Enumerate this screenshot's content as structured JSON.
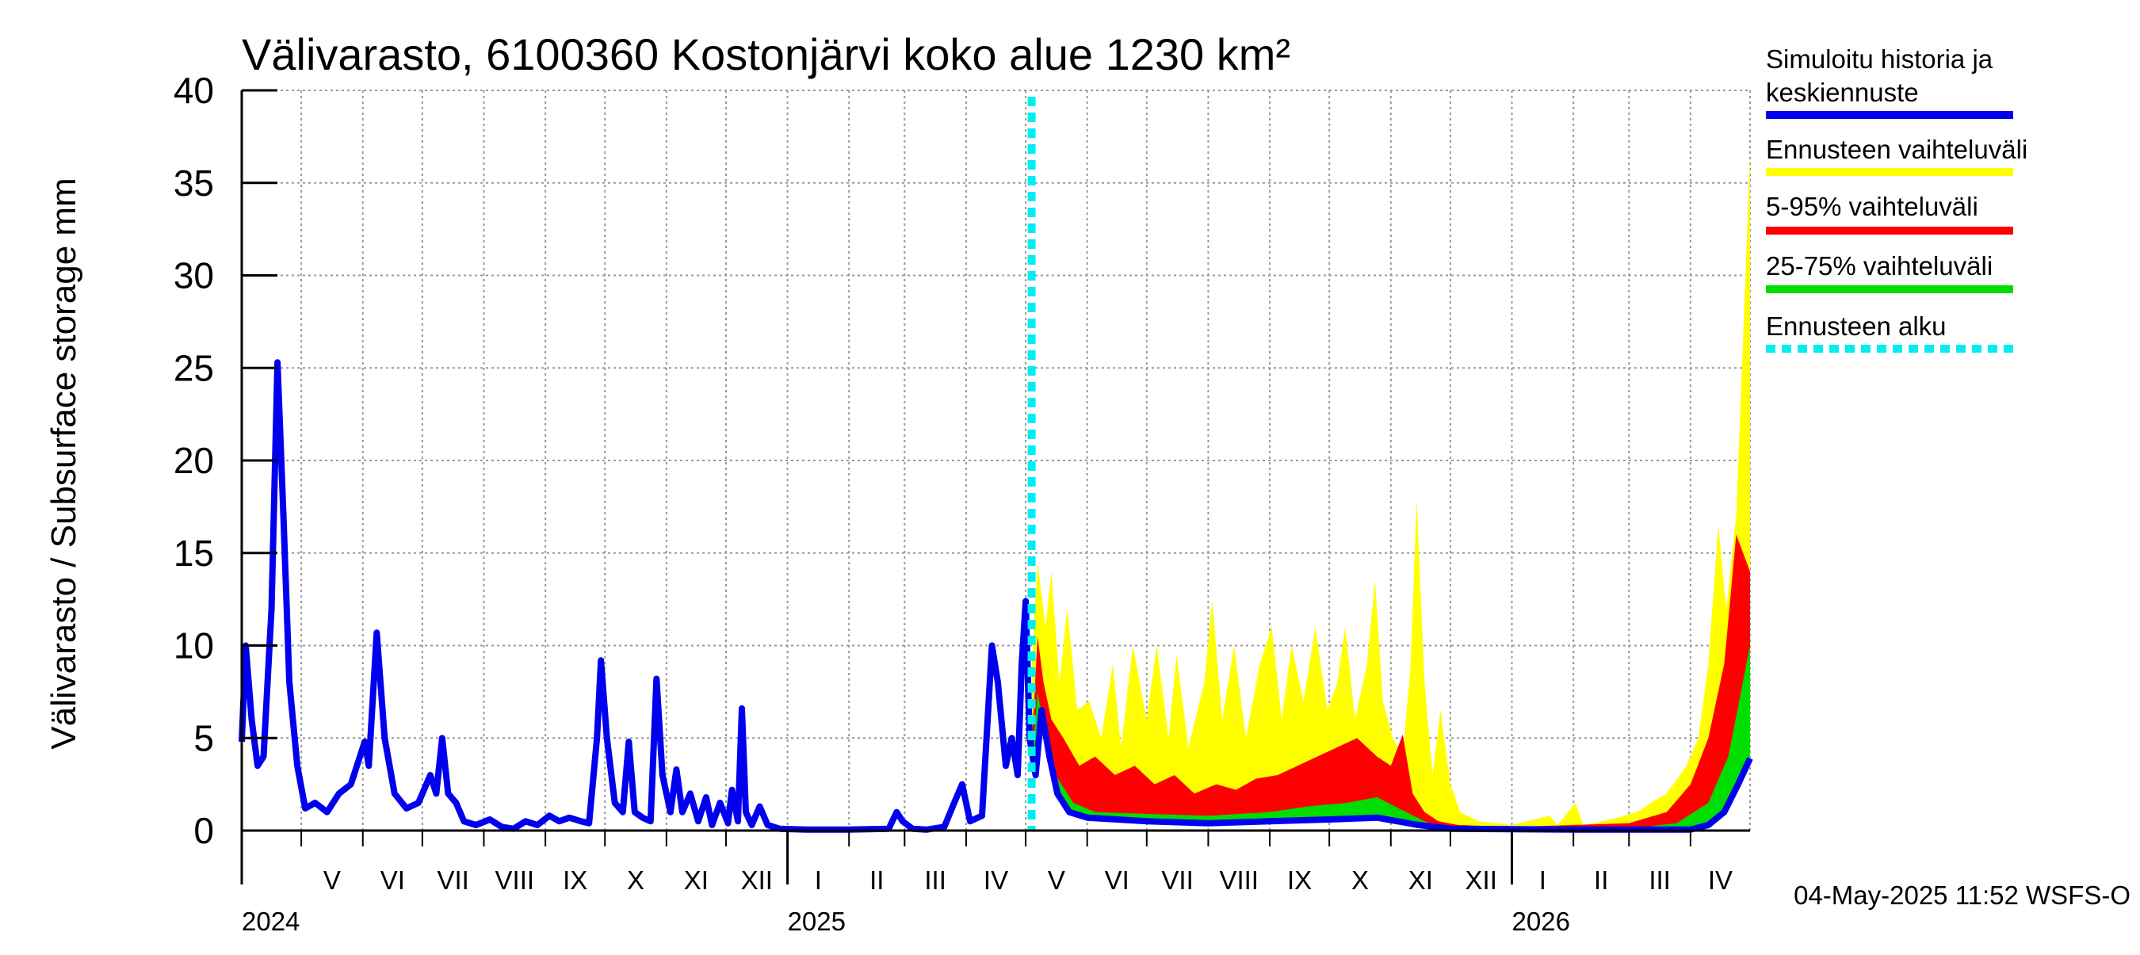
{
  "chart_data": {
    "type": "area",
    "title": "Välivarasto, 6100360 Kostonjärvi koko alue 1230 km²",
    "ylabel": "Välivarasto / Subsurface storage  mm",
    "ylim": [
      0,
      40
    ],
    "yticks": [
      0,
      5,
      10,
      15,
      20,
      25,
      30,
      35,
      40
    ],
    "xlim": [
      "2024-04-01",
      "2026-05-01"
    ],
    "grid": true,
    "legend_position": "right",
    "forecast_start": "2025-05-04",
    "months": [
      {
        "label": "V",
        "start": "2024-05-01"
      },
      {
        "label": "VI",
        "start": "2024-06-01"
      },
      {
        "label": "VII",
        "start": "2024-07-01"
      },
      {
        "label": "VIII",
        "start": "2024-08-01"
      },
      {
        "label": "IX",
        "start": "2024-09-01"
      },
      {
        "label": "X",
        "start": "2024-10-01"
      },
      {
        "label": "XI",
        "start": "2024-11-01"
      },
      {
        "label": "XII",
        "start": "2024-12-01"
      },
      {
        "label": "I",
        "start": "2025-01-01"
      },
      {
        "label": "II",
        "start": "2025-02-01"
      },
      {
        "label": "III",
        "start": "2025-03-01"
      },
      {
        "label": "IV",
        "start": "2025-04-01"
      },
      {
        "label": "V",
        "start": "2025-05-01"
      },
      {
        "label": "VI",
        "start": "2025-06-01"
      },
      {
        "label": "VII",
        "start": "2025-07-01"
      },
      {
        "label": "VIII",
        "start": "2025-08-01"
      },
      {
        "label": "IX",
        "start": "2025-09-01"
      },
      {
        "label": "X",
        "start": "2025-10-01"
      },
      {
        "label": "XI",
        "start": "2025-11-01"
      },
      {
        "label": "XII",
        "start": "2025-12-01"
      },
      {
        "label": "I",
        "start": "2026-01-01"
      },
      {
        "label": "II",
        "start": "2026-02-01"
      },
      {
        "label": "III",
        "start": "2026-03-01"
      },
      {
        "label": "IV",
        "start": "2026-04-01"
      }
    ],
    "years": [
      {
        "label": "2024",
        "date": "2024-04-01"
      },
      {
        "label": "2025",
        "date": "2025-01-01"
      },
      {
        "label": "2026",
        "date": "2026-01-01"
      }
    ],
    "series": [
      {
        "name": "Simuloitu historia ja keskiennuste",
        "color": "#0000ee",
        "values": [
          [
            "2024-04-01",
            4.8
          ],
          [
            "2024-04-03",
            10.0
          ],
          [
            "2024-04-06",
            6.0
          ],
          [
            "2024-04-09",
            3.5
          ],
          [
            "2024-04-12",
            4.0
          ],
          [
            "2024-04-16",
            12.0
          ],
          [
            "2024-04-19",
            25.3
          ],
          [
            "2024-04-22",
            17.0
          ],
          [
            "2024-04-25",
            8.0
          ],
          [
            "2024-04-29",
            3.5
          ],
          [
            "2024-05-03",
            1.2
          ],
          [
            "2024-05-08",
            1.5
          ],
          [
            "2024-05-14",
            1.0
          ],
          [
            "2024-05-20",
            2.0
          ],
          [
            "2024-05-26",
            2.5
          ],
          [
            "2024-06-02",
            4.8
          ],
          [
            "2024-06-04",
            3.5
          ],
          [
            "2024-06-08",
            10.7
          ],
          [
            "2024-06-12",
            5.0
          ],
          [
            "2024-06-17",
            2.0
          ],
          [
            "2024-06-23",
            1.2
          ],
          [
            "2024-06-29",
            1.5
          ],
          [
            "2024-07-05",
            3.0
          ],
          [
            "2024-07-08",
            2.0
          ],
          [
            "2024-07-11",
            5.0
          ],
          [
            "2024-07-14",
            2.0
          ],
          [
            "2024-07-18",
            1.5
          ],
          [
            "2024-07-22",
            0.5
          ],
          [
            "2024-07-28",
            0.3
          ],
          [
            "2024-08-04",
            0.6
          ],
          [
            "2024-08-10",
            0.2
          ],
          [
            "2024-08-16",
            0.1
          ],
          [
            "2024-08-22",
            0.5
          ],
          [
            "2024-08-28",
            0.3
          ],
          [
            "2024-09-03",
            0.8
          ],
          [
            "2024-09-08",
            0.5
          ],
          [
            "2024-09-13",
            0.7
          ],
          [
            "2024-09-19",
            0.5
          ],
          [
            "2024-09-23",
            0.4
          ],
          [
            "2024-09-27",
            5.0
          ],
          [
            "2024-09-29",
            9.2
          ],
          [
            "2024-10-02",
            5.0
          ],
          [
            "2024-10-06",
            1.5
          ],
          [
            "2024-10-10",
            1.0
          ],
          [
            "2024-10-13",
            4.8
          ],
          [
            "2024-10-16",
            1.0
          ],
          [
            "2024-10-20",
            0.7
          ],
          [
            "2024-10-24",
            0.5
          ],
          [
            "2024-10-27",
            8.2
          ],
          [
            "2024-10-30",
            3.0
          ],
          [
            "2024-11-03",
            1.0
          ],
          [
            "2024-11-06",
            3.3
          ],
          [
            "2024-11-09",
            1.0
          ],
          [
            "2024-11-13",
            2.0
          ],
          [
            "2024-11-17",
            0.5
          ],
          [
            "2024-11-21",
            1.8
          ],
          [
            "2024-11-24",
            0.3
          ],
          [
            "2024-11-28",
            1.5
          ],
          [
            "2024-12-02",
            0.4
          ],
          [
            "2024-12-04",
            2.2
          ],
          [
            "2024-12-07",
            0.5
          ],
          [
            "2024-12-09",
            6.6
          ],
          [
            "2024-12-11",
            1.0
          ],
          [
            "2024-12-14",
            0.3
          ],
          [
            "2024-12-18",
            1.3
          ],
          [
            "2024-12-22",
            0.3
          ],
          [
            "2024-12-28",
            0.1
          ],
          [
            "2025-01-10",
            0.05
          ],
          [
            "2025-02-01",
            0.05
          ],
          [
            "2025-02-21",
            0.1
          ],
          [
            "2025-02-25",
            1.0
          ],
          [
            "2025-02-28",
            0.5
          ],
          [
            "2025-03-05",
            0.1
          ],
          [
            "2025-03-12",
            0.05
          ],
          [
            "2025-03-21",
            0.2
          ],
          [
            "2025-03-26",
            1.5
          ],
          [
            "2025-03-30",
            2.5
          ],
          [
            "2025-04-03",
            0.5
          ],
          [
            "2025-04-09",
            0.8
          ],
          [
            "2025-04-14",
            10.0
          ],
          [
            "2025-04-17",
            8.0
          ],
          [
            "2025-04-21",
            3.5
          ],
          [
            "2025-04-24",
            5.0
          ],
          [
            "2025-04-27",
            3.0
          ],
          [
            "2025-04-29",
            9.0
          ],
          [
            "2025-05-01",
            12.4
          ],
          [
            "2025-05-03",
            5.0
          ],
          [
            "2025-05-06",
            3.0
          ],
          [
            "2025-05-09",
            6.5
          ],
          [
            "2025-05-13",
            4.0
          ],
          [
            "2025-05-17",
            2.0
          ],
          [
            "2025-05-23",
            1.0
          ],
          [
            "2025-06-01",
            0.7
          ],
          [
            "2025-07-01",
            0.5
          ],
          [
            "2025-08-01",
            0.4
          ],
          [
            "2025-09-01",
            0.5
          ],
          [
            "2025-10-01",
            0.6
          ],
          [
            "2025-10-25",
            0.7
          ],
          [
            "2025-11-15",
            0.3
          ],
          [
            "2025-12-01",
            0.1
          ],
          [
            "2026-02-01",
            0.05
          ],
          [
            "2026-04-01",
            0.05
          ],
          [
            "2026-04-10",
            0.3
          ],
          [
            "2026-04-18",
            1.0
          ],
          [
            "2026-04-25",
            2.5
          ],
          [
            "2026-05-01",
            3.9
          ]
        ]
      },
      {
        "name": "Ennusteen vaihteluväli",
        "color": "#ffff00",
        "upper": [
          [
            "2025-05-04",
            9.0
          ],
          [
            "2025-05-07",
            14.5
          ],
          [
            "2025-05-11",
            11.0
          ],
          [
            "2025-05-14",
            14.0
          ],
          [
            "2025-05-18",
            8.0
          ],
          [
            "2025-05-22",
            12.0
          ],
          [
            "2025-05-27",
            6.5
          ],
          [
            "2025-06-02",
            7.0
          ],
          [
            "2025-06-08",
            5.0
          ],
          [
            "2025-06-14",
            9.0
          ],
          [
            "2025-06-18",
            4.5
          ],
          [
            "2025-06-24",
            10.0
          ],
          [
            "2025-07-01",
            6.0
          ],
          [
            "2025-07-06",
            10.0
          ],
          [
            "2025-07-12",
            5.0
          ],
          [
            "2025-07-16",
            9.5
          ],
          [
            "2025-07-22",
            4.5
          ],
          [
            "2025-07-30",
            8.0
          ],
          [
            "2025-08-03",
            12.5
          ],
          [
            "2025-08-08",
            6.0
          ],
          [
            "2025-08-14",
            10.0
          ],
          [
            "2025-08-20",
            5.0
          ],
          [
            "2025-08-27",
            9.0
          ],
          [
            "2025-09-02",
            11.0
          ],
          [
            "2025-09-07",
            6.0
          ],
          [
            "2025-09-12",
            10.0
          ],
          [
            "2025-09-18",
            7.0
          ],
          [
            "2025-09-24",
            11.0
          ],
          [
            "2025-09-30",
            6.5
          ],
          [
            "2025-10-05",
            8.0
          ],
          [
            "2025-10-09",
            11.0
          ],
          [
            "2025-10-14",
            6.0
          ],
          [
            "2025-10-20",
            9.0
          ],
          [
            "2025-10-24",
            13.5
          ],
          [
            "2025-10-28",
            7.0
          ],
          [
            "2025-11-02",
            5.0
          ],
          [
            "2025-11-07",
            4.0
          ],
          [
            "2025-11-11",
            9.0
          ],
          [
            "2025-11-14",
            17.9
          ],
          [
            "2025-11-18",
            8.0
          ],
          [
            "2025-11-22",
            3.0
          ],
          [
            "2025-11-26",
            6.5
          ],
          [
            "2025-12-01",
            2.5
          ],
          [
            "2025-12-06",
            1.0
          ],
          [
            "2025-12-15",
            0.5
          ],
          [
            "2026-01-01",
            0.3
          ],
          [
            "2026-01-20",
            0.8
          ],
          [
            "2026-01-24",
            0.3
          ],
          [
            "2026-02-02",
            1.5
          ],
          [
            "2026-02-06",
            0.3
          ],
          [
            "2026-02-20",
            0.6
          ],
          [
            "2026-03-05",
            1.0
          ],
          [
            "2026-03-12",
            1.5
          ],
          [
            "2026-03-20",
            2.0
          ],
          [
            "2026-03-30",
            3.5
          ],
          [
            "2026-04-05",
            5.0
          ],
          [
            "2026-04-10",
            9.0
          ],
          [
            "2026-04-15",
            16.5
          ],
          [
            "2026-04-19",
            12.0
          ],
          [
            "2026-04-24",
            17.0
          ],
          [
            "2026-04-28",
            28.0
          ],
          [
            "2026-05-01",
            36.5
          ]
        ]
      },
      {
        "name": "5-95% vaihteluväli",
        "color": "#ff0000",
        "upper": [
          [
            "2025-05-04",
            4.5
          ],
          [
            "2025-05-07",
            10.5
          ],
          [
            "2025-05-10",
            8.0
          ],
          [
            "2025-05-14",
            6.0
          ],
          [
            "2025-05-20",
            5.0
          ],
          [
            "2025-05-28",
            3.5
          ],
          [
            "2025-06-05",
            4.0
          ],
          [
            "2025-06-15",
            3.0
          ],
          [
            "2025-06-25",
            3.5
          ],
          [
            "2025-07-05",
            2.5
          ],
          [
            "2025-07-15",
            3.0
          ],
          [
            "2025-07-25",
            2.0
          ],
          [
            "2025-08-05",
            2.5
          ],
          [
            "2025-08-15",
            2.2
          ],
          [
            "2025-08-25",
            2.8
          ],
          [
            "2025-09-05",
            3.0
          ],
          [
            "2025-09-15",
            3.5
          ],
          [
            "2025-09-25",
            4.0
          ],
          [
            "2025-10-05",
            4.5
          ],
          [
            "2025-10-15",
            5.0
          ],
          [
            "2025-10-25",
            4.0
          ],
          [
            "2025-11-01",
            3.5
          ],
          [
            "2025-11-07",
            5.2
          ],
          [
            "2025-11-12",
            2.0
          ],
          [
            "2025-11-18",
            1.0
          ],
          [
            "2025-11-25",
            0.5
          ],
          [
            "2025-12-05",
            0.3
          ],
          [
            "2026-01-01",
            0.2
          ],
          [
            "2026-02-01",
            0.3
          ],
          [
            "2026-03-01",
            0.4
          ],
          [
            "2026-03-20",
            1.0
          ],
          [
            "2026-04-01",
            2.5
          ],
          [
            "2026-04-10",
            5.0
          ],
          [
            "2026-04-18",
            9.0
          ],
          [
            "2026-04-24",
            16.0
          ],
          [
            "2026-05-01",
            14.0
          ]
        ]
      },
      {
        "name": "25-75% vaihteluväli",
        "color": "#00dd00",
        "upper": [
          [
            "2025-05-04",
            3.0
          ],
          [
            "2025-05-07",
            7.5
          ],
          [
            "2025-05-11",
            5.0
          ],
          [
            "2025-05-16",
            3.0
          ],
          [
            "2025-05-25",
            1.5
          ],
          [
            "2025-06-05",
            1.0
          ],
          [
            "2025-07-01",
            0.9
          ],
          [
            "2025-08-01",
            0.8
          ],
          [
            "2025-09-01",
            1.0
          ],
          [
            "2025-09-20",
            1.3
          ],
          [
            "2025-10-10",
            1.5
          ],
          [
            "2025-10-25",
            1.8
          ],
          [
            "2025-11-05",
            1.2
          ],
          [
            "2025-11-20",
            0.4
          ],
          [
            "2025-12-10",
            0.1
          ],
          [
            "2026-03-01",
            0.1
          ],
          [
            "2026-03-25",
            0.4
          ],
          [
            "2026-04-10",
            1.5
          ],
          [
            "2026-04-20",
            4.0
          ],
          [
            "2026-05-01",
            10.0
          ]
        ]
      }
    ],
    "legend": [
      {
        "label": "Simuloitu historia ja keskiennuste",
        "lines": [
          "Simuloitu historia ja",
          "keskiennuste"
        ],
        "color": "#0000ee",
        "style": "solid"
      },
      {
        "label": "Ennusteen vaihteluväli",
        "lines": [
          "Ennusteen vaihteluväli"
        ],
        "color": "#ffff00",
        "style": "solid"
      },
      {
        "label": "5-95% vaihteluväli",
        "lines": [
          "5-95% vaihteluväli"
        ],
        "color": "#ff0000",
        "style": "solid"
      },
      {
        "label": "25-75% vaihteluväli",
        "lines": [
          "25-75% vaihteluväli"
        ],
        "color": "#00dd00",
        "style": "solid"
      },
      {
        "label": "Ennusteen alku",
        "lines": [
          "Ennusteen alku"
        ],
        "color": "#00eeee",
        "style": "dashed"
      }
    ],
    "footer": "04-May-2025 11:52 WSFS-O"
  }
}
